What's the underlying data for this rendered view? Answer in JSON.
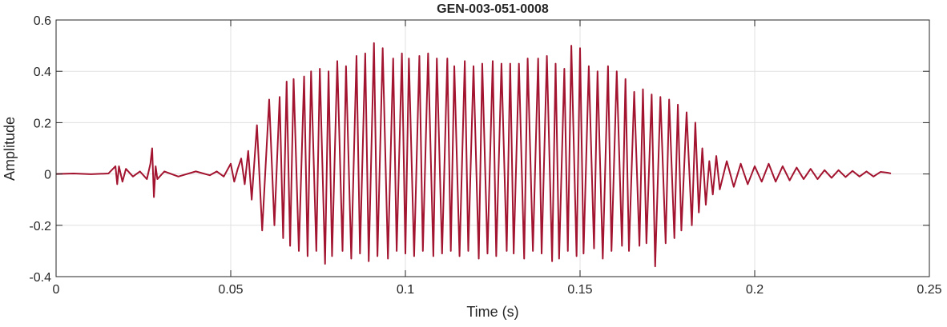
{
  "chart_data": {
    "type": "line",
    "title": "GEN-003-051-0008",
    "xlabel": "Time (s)",
    "ylabel": "Amplitude",
    "color": "#a2142f",
    "grid": true,
    "xlim": [
      0,
      0.25
    ],
    "ylim": [
      -0.4,
      0.6
    ],
    "xticks": [
      0,
      0.05,
      0.1,
      0.15,
      0.2,
      0.25
    ],
    "yticks": [
      -0.4,
      -0.2,
      0,
      0.2,
      0.4,
      0.6
    ],
    "x": [
      0,
      0.005,
      0.01,
      0.015,
      0.017,
      0.0175,
      0.018,
      0.019,
      0.02,
      0.022,
      0.024,
      0.026,
      0.027,
      0.0275,
      0.028,
      0.0285,
      0.029,
      0.031,
      0.035,
      0.04,
      0.044,
      0.046,
      0.048,
      0.05,
      0.051,
      0.052,
      0.053,
      0.054,
      0.055,
      0.056,
      0.0575,
      0.059,
      0.061,
      0.0625,
      0.064,
      0.065,
      0.066,
      0.067,
      0.068,
      0.0695,
      0.071,
      0.072,
      0.073,
      0.0745,
      0.0755,
      0.077,
      0.078,
      0.079,
      0.0805,
      0.082,
      0.083,
      0.0845,
      0.086,
      0.087,
      0.0885,
      0.0895,
      0.091,
      0.092,
      0.0935,
      0.095,
      0.0965,
      0.0975,
      0.099,
      0.1,
      0.101,
      0.1025,
      0.104,
      0.105,
      0.1065,
      0.108,
      0.109,
      0.1105,
      0.112,
      0.113,
      0.114,
      0.1155,
      0.117,
      0.118,
      0.1195,
      0.121,
      0.122,
      0.1235,
      0.125,
      0.126,
      0.1275,
      0.129,
      0.13,
      0.131,
      0.1325,
      0.134,
      0.135,
      0.1365,
      0.138,
      0.139,
      0.1405,
      0.142,
      0.143,
      0.144,
      0.1455,
      0.1465,
      0.1475,
      0.149,
      0.15,
      0.151,
      0.1525,
      0.154,
      0.155,
      0.1565,
      0.158,
      0.159,
      0.1605,
      0.162,
      0.163,
      0.164,
      0.1655,
      0.167,
      0.168,
      0.169,
      0.1705,
      0.1715,
      0.173,
      0.1745,
      0.1755,
      0.177,
      0.178,
      0.179,
      0.1805,
      0.182,
      0.183,
      0.184,
      0.185,
      0.186,
      0.187,
      0.188,
      0.189,
      0.19,
      0.192,
      0.194,
      0.196,
      0.198,
      0.2,
      0.202,
      0.204,
      0.206,
      0.208,
      0.21,
      0.212,
      0.214,
      0.216,
      0.218,
      0.22,
      0.222,
      0.224,
      0.226,
      0.228,
      0.23,
      0.232,
      0.234,
      0.236,
      0.238,
      0.239
    ],
    "values": [
      0,
      0.002,
      -0.001,
      0.002,
      0.03,
      -0.04,
      0.03,
      -0.03,
      0.02,
      -0.01,
      0.01,
      -0.02,
      0.04,
      0.1,
      -0.09,
      0.03,
      -0.02,
      0.01,
      -0.01,
      0.01,
      -0.005,
      0.01,
      -0.01,
      0.04,
      -0.03,
      0.02,
      0.06,
      -0.04,
      0.09,
      -0.1,
      0.19,
      -0.22,
      0.29,
      -0.2,
      0.3,
      -0.25,
      0.36,
      -0.28,
      0.37,
      -0.3,
      0.38,
      -0.32,
      0.4,
      -0.3,
      0.41,
      -0.35,
      0.4,
      -0.32,
      0.44,
      -0.3,
      0.42,
      -0.33,
      0.46,
      -0.31,
      0.47,
      -0.34,
      0.51,
      -0.32,
      0.49,
      -0.33,
      0.45,
      -0.3,
      0.47,
      -0.31,
      0.45,
      -0.32,
      0.46,
      -0.3,
      0.47,
      -0.32,
      0.45,
      -0.31,
      0.45,
      -0.3,
      0.42,
      -0.32,
      0.44,
      -0.3,
      0.42,
      -0.33,
      0.43,
      -0.31,
      0.44,
      -0.32,
      0.43,
      -0.3,
      0.43,
      -0.31,
      0.43,
      -0.33,
      0.45,
      -0.3,
      0.45,
      -0.31,
      0.46,
      -0.34,
      0.43,
      -0.33,
      0.41,
      -0.3,
      0.5,
      -0.32,
      0.49,
      -0.31,
      0.42,
      -0.29,
      0.4,
      -0.33,
      0.42,
      -0.3,
      0.4,
      -0.28,
      0.37,
      -0.3,
      0.32,
      -0.28,
      0.33,
      -0.27,
      0.31,
      -0.36,
      0.3,
      -0.27,
      0.29,
      -0.25,
      0.27,
      -0.22,
      0.24,
      -0.2,
      0.2,
      -0.15,
      0.1,
      -0.12,
      0.05,
      -0.08,
      0.07,
      -0.06,
      0.05,
      -0.05,
      0.04,
      -0.04,
      0.03,
      -0.03,
      0.04,
      -0.03,
      0.03,
      -0.025,
      0.025,
      -0.02,
      0.02,
      -0.02,
      0.015,
      -0.015,
      0.015,
      -0.012,
      0.012,
      -0.01,
      0.01,
      -0.01,
      0.008,
      0.005,
      0.002
    ]
  }
}
